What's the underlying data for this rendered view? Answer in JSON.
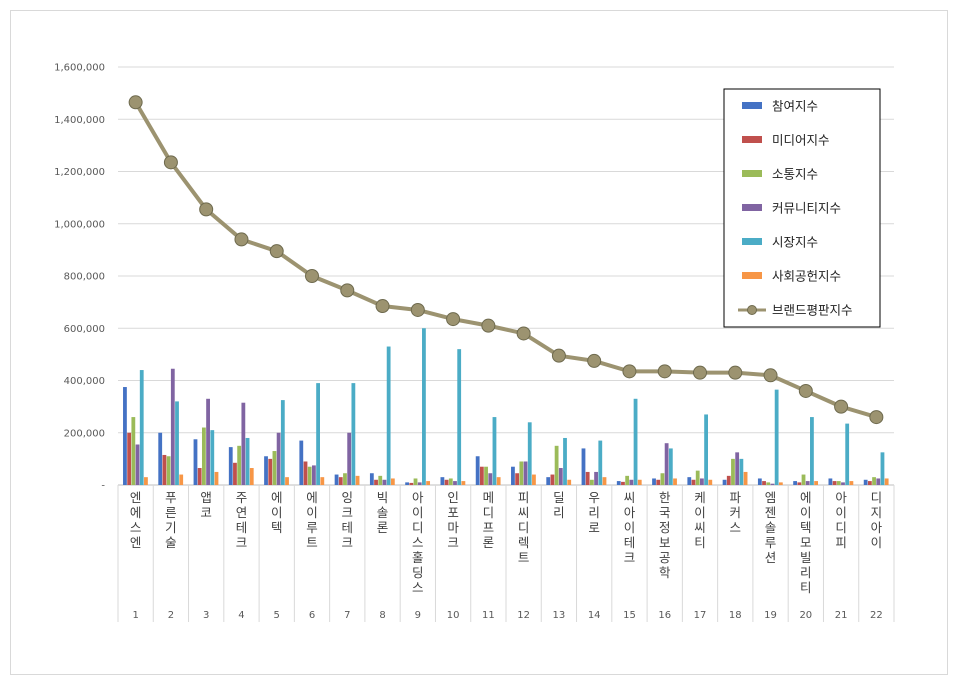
{
  "chart_data": {
    "type": "bar",
    "y_ticks": [
      "1,600,000",
      "1,400,000",
      "1,200,000",
      "1,000,000",
      "800,000",
      "600,000",
      "400,000",
      "200,000",
      "-"
    ],
    "ylim": [
      0,
      1600000
    ],
    "grid": true,
    "legend_position": "top-right",
    "categories": [
      "엔에스엔",
      "푸른기술",
      "앱코",
      "주연테크",
      "에이텍",
      "에이루트",
      "잉크테크",
      "빅솔론",
      "아이디스홀딩스",
      "인포마크",
      "메디프론",
      "피씨디렉트",
      "딜리",
      "우리로",
      "씨아이테크",
      "한국정보공학",
      "케이씨티",
      "파커스",
      "엠젠솔루션",
      "에이텍모빌리티",
      "아이디피",
      "디지아이"
    ],
    "ranks": [
      "1",
      "2",
      "3",
      "4",
      "5",
      "6",
      "7",
      "8",
      "9",
      "10",
      "11",
      "12",
      "13",
      "14",
      "15",
      "16",
      "17",
      "18",
      "19",
      "20",
      "21",
      "22"
    ],
    "series": [
      {
        "name": "참여지수",
        "color": "#4472c4",
        "values": [
          375000,
          200000,
          175000,
          145000,
          110000,
          170000,
          40000,
          45000,
          10000,
          30000,
          110000,
          70000,
          30000,
          140000,
          15000,
          25000,
          30000,
          20000,
          25000,
          15000,
          25000,
          20000
        ]
      },
      {
        "name": "미디어지수",
        "color": "#c0504d",
        "values": [
          200000,
          115000,
          65000,
          85000,
          100000,
          90000,
          30000,
          20000,
          8000,
          20000,
          70000,
          45000,
          40000,
          50000,
          12000,
          20000,
          20000,
          35000,
          15000,
          10000,
          15000,
          15000
        ]
      },
      {
        "name": "소통지수",
        "color": "#9bbb59",
        "values": [
          260000,
          110000,
          220000,
          150000,
          130000,
          70000,
          45000,
          35000,
          25000,
          25000,
          70000,
          90000,
          150000,
          20000,
          35000,
          45000,
          55000,
          100000,
          10000,
          40000,
          15000,
          30000
        ]
      },
      {
        "name": "커뮤니티지수",
        "color": "#8064a2",
        "values": [
          155000,
          445000,
          330000,
          315000,
          200000,
          75000,
          200000,
          20000,
          10000,
          15000,
          45000,
          90000,
          65000,
          50000,
          20000,
          160000,
          25000,
          125000,
          5000,
          15000,
          10000,
          25000
        ]
      },
      {
        "name": "시장지수",
        "color": "#4bacc6",
        "values": [
          440000,
          320000,
          210000,
          180000,
          325000,
          390000,
          390000,
          530000,
          600000,
          520000,
          260000,
          240000,
          180000,
          170000,
          330000,
          140000,
          270000,
          100000,
          365000,
          260000,
          235000,
          125000
        ]
      },
      {
        "name": "사회공헌지수",
        "color": "#f79646",
        "values": [
          30000,
          40000,
          50000,
          65000,
          30000,
          30000,
          35000,
          25000,
          15000,
          15000,
          30000,
          40000,
          20000,
          30000,
          20000,
          25000,
          20000,
          50000,
          10000,
          15000,
          15000,
          25000
        ]
      }
    ],
    "line_series": {
      "name": "브랜드평판지수",
      "color": "#9c9370",
      "values": [
        1465000,
        1235000,
        1055000,
        940000,
        895000,
        800000,
        745000,
        685000,
        670000,
        635000,
        610000,
        580000,
        495000,
        475000,
        435000,
        435000,
        430000,
        430000,
        420000,
        360000,
        300000,
        260000
      ]
    }
  }
}
